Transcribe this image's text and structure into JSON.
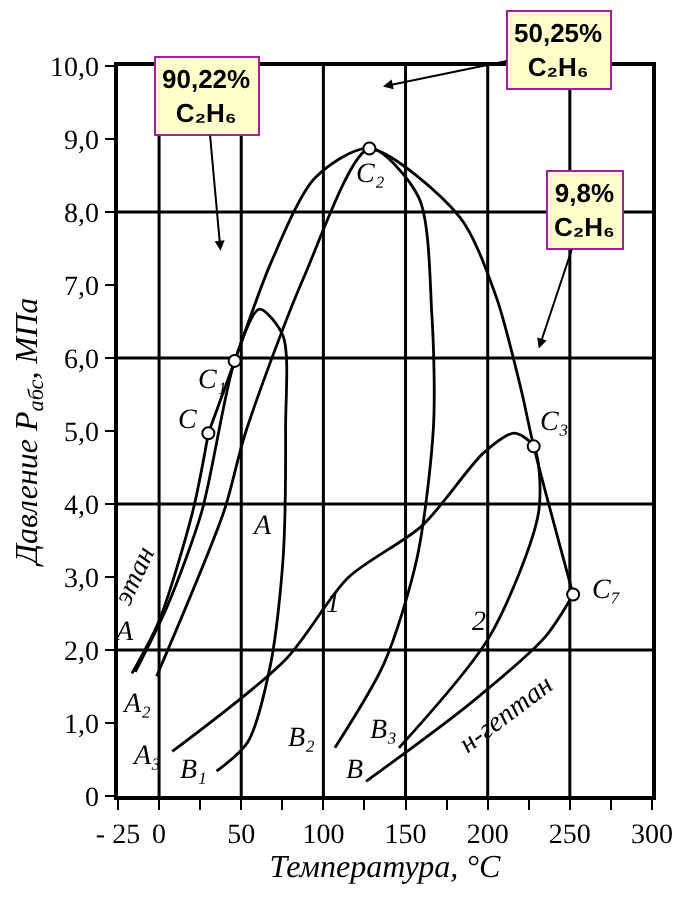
{
  "chart_data": {
    "type": "line",
    "xlabel": "Температура, °C",
    "ylabel": "Давление P$_{абс}$, МПа",
    "xlim": [
      -25,
      300
    ],
    "xticks": [
      {
        "value": -25,
        "label": "- 25"
      },
      0,
      {
        "value": 25,
        "label": null
      },
      50,
      {
        "value": 75,
        "label": null
      },
      100,
      {
        "value": 125,
        "label": null
      },
      150,
      {
        "value": 175,
        "label": null
      },
      200,
      {
        "value": 225,
        "label": null
      },
      250,
      {
        "value": 275,
        "label": null
      },
      300
    ],
    "ylim": [
      0,
      10
    ],
    "yticks": [
      0,
      {
        "value": 1,
        "label": "1,0"
      },
      {
        "value": 2,
        "label": "2,0"
      },
      {
        "value": 3,
        "label": "3,0"
      },
      {
        "value": 4,
        "label": "4,0"
      },
      {
        "value": 5,
        "label": "5,0"
      },
      {
        "value": 6,
        "label": "6,0"
      },
      {
        "value": 7,
        "label": "7,0"
      },
      {
        "value": 8,
        "label": "8,0"
      },
      {
        "value": 9,
        "label": "9,0"
      },
      {
        "value": 10,
        "label": "10,0"
      }
    ],
    "grid": true,
    "series": [
      {
        "color": "#000000",
        "x": [
          -16.5,
          0,
          20.5,
          30
        ],
        "values": [
          1.68,
          2.4,
          3.9,
          4.97
        ]
      },
      {
        "color": "#000000",
        "x": [
          -14.5,
          5,
          26,
          46,
          61,
          75.5,
          77,
          75.5,
          68,
          54,
          35
        ],
        "values": [
          1.7,
          2.6,
          3.9,
          5.96,
          6.67,
          6.3,
          5.05,
          3.26,
          1.82,
          0.74,
          0.34
        ]
      },
      {
        "color": "#000000",
        "x": [
          -1.5,
          39.5,
          52.5,
          88,
          128,
          158,
          166,
          167,
          157,
          137,
          107
        ],
        "values": [
          1.64,
          3.9,
          4.97,
          7.1,
          8.87,
          8.2,
          6.6,
          5.06,
          3.26,
          1.82,
          0.66
        ]
      },
      {
        "color": "#000000",
        "x": [
          8,
          77,
          115,
          160,
          197.5,
          216,
          228,
          231,
          201,
          146
        ],
        "values": [
          0.61,
          1.87,
          2.99,
          3.7,
          4.7,
          4.97,
          4.79,
          3.89,
          2.18,
          0.66
        ]
      },
      {
        "color": "#000000",
        "x": [
          126,
          190,
          235,
          252
        ],
        "values": [
          0.2,
          1.28,
          2.18,
          2.76
        ]
      },
      {
        "color": "#000000",
        "x": [
          30,
          46,
          68,
          95,
          128,
          183,
          205,
          220,
          228,
          252
        ],
        "values": [
          4.97,
          5.96,
          7.3,
          8.47,
          8.87,
          7.93,
          6.85,
          5.6,
          4.79,
          2.76
        ]
      },
      {
        "type": "scatter",
        "marker": "circle",
        "color": "#000000",
        "x": [
          30,
          46,
          128,
          228,
          252
        ],
        "values": [
          4.97,
          5.96,
          8.87,
          4.79,
          2.76
        ]
      }
    ],
    "annotations": [
      "90,22%\nC₂H₆",
      "50,25%\nC₂H₆",
      "9,8%\nC₂H₆",
      {
        "text": "C",
        "x": 30,
        "y": 4.97
      },
      {
        "text": "C₁",
        "x": 46,
        "y": 5.96
      },
      {
        "text": "C₂",
        "x": 128,
        "y": 8.87
      },
      {
        "text": "C₃",
        "x": 228,
        "y": 4.79
      },
      {
        "text": "C₇",
        "x": 252,
        "y": 2.76
      },
      {
        "text": "A",
        "x": -16.5,
        "y": 1.68
      },
      {
        "text": "A",
        "x": 26,
        "y": 3.9
      },
      {
        "text": "A₂",
        "x": -1.5,
        "y": 1.64
      },
      {
        "text": "A₃",
        "x": 8,
        "y": 0.61
      },
      {
        "text": "B₁",
        "x": 35,
        "y": 0.34
      },
      {
        "text": "B₂",
        "x": 107,
        "y": 0.66
      },
      {
        "text": "B₃",
        "x": 146,
        "y": 0.66
      },
      {
        "text": "B",
        "x": 126,
        "y": 0.2
      },
      {
        "text": "1",
        "x": 115,
        "y": 2.99
      },
      {
        "text": "2",
        "x": 201,
        "y": 2.18
      },
      {
        "text": "этан",
        "x": 10,
        "y": 3.0
      },
      {
        "text": "н-гептан",
        "x": 190,
        "y": 1.28
      }
    ]
  }
}
